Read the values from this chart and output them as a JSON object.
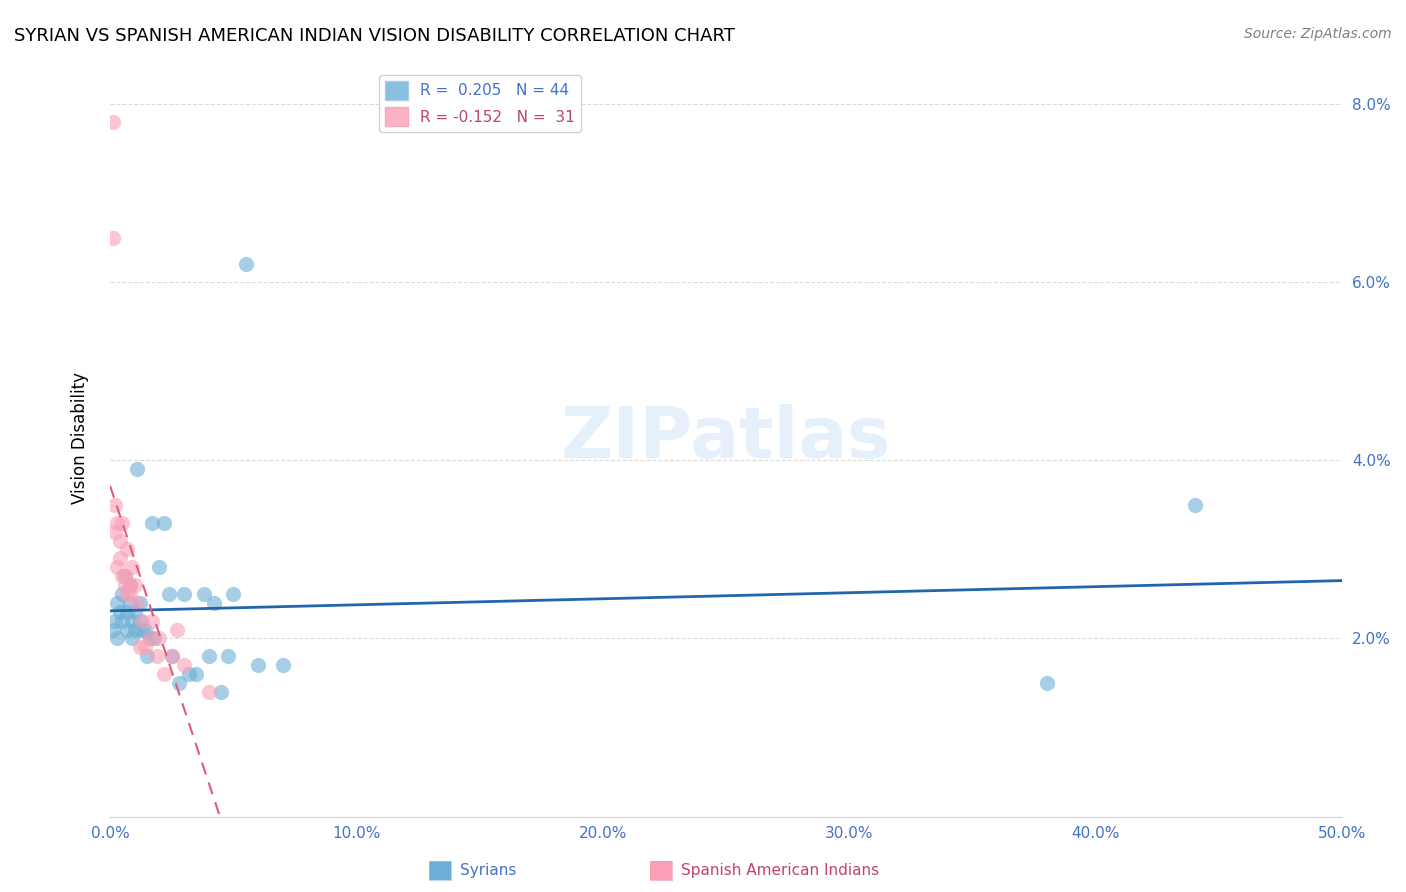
{
  "title": "SYRIAN VS SPANISH AMERICAN INDIAN VISION DISABILITY CORRELATION CHART",
  "source": "Source: ZipAtlas.com",
  "xlabel_syrians": "Syrians",
  "xlabel_spanish": "Spanish American Indians",
  "ylabel": "Vision Disability",
  "xlim": [
    0.0,
    0.5
  ],
  "ylim": [
    0.0,
    0.085
  ],
  "xticks": [
    0.0,
    0.1,
    0.2,
    0.3,
    0.4,
    0.5
  ],
  "xticklabels": [
    "0.0%",
    "10.0%",
    "20.0%",
    "30.0%",
    "40.0%",
    "50.0%"
  ],
  "yticks": [
    0.0,
    0.02,
    0.04,
    0.06,
    0.08
  ],
  "yticklabels": [
    "",
    "2.0%",
    "4.0%",
    "6.0%",
    "8.0%"
  ],
  "legend_r1": "R =  0.205",
  "legend_n1": "N = 44",
  "legend_r2": "R = -0.152",
  "legend_n2": "N =  31",
  "blue_color": "#6baed6",
  "pink_color": "#fa9fb5",
  "blue_line_color": "#2166ac",
  "pink_line_color": "#e05a7a",
  "legend_text_color": "#4472c4",
  "legend_text_color2": "#c0446a",
  "watermark": "ZIPatlas",
  "syrians_x": [
    0.001,
    0.002,
    0.003,
    0.003,
    0.004,
    0.005,
    0.005,
    0.006,
    0.007,
    0.007,
    0.008,
    0.008,
    0.009,
    0.009,
    0.01,
    0.01,
    0.011,
    0.012,
    0.012,
    0.013,
    0.014,
    0.015,
    0.016,
    0.017,
    0.018,
    0.02,
    0.022,
    0.024,
    0.025,
    0.028,
    0.03,
    0.032,
    0.035,
    0.038,
    0.04,
    0.042,
    0.045,
    0.048,
    0.05,
    0.055,
    0.06,
    0.07,
    0.38,
    0.44
  ],
  "syrians_y": [
    0.021,
    0.022,
    0.024,
    0.02,
    0.023,
    0.025,
    0.022,
    0.027,
    0.023,
    0.021,
    0.026,
    0.024,
    0.022,
    0.02,
    0.023,
    0.021,
    0.039,
    0.022,
    0.024,
    0.021,
    0.021,
    0.018,
    0.02,
    0.033,
    0.02,
    0.028,
    0.033,
    0.025,
    0.018,
    0.015,
    0.025,
    0.016,
    0.016,
    0.025,
    0.018,
    0.024,
    0.014,
    0.018,
    0.025,
    0.062,
    0.017,
    0.017,
    0.015,
    0.035
  ],
  "spanish_x": [
    0.001,
    0.002,
    0.002,
    0.003,
    0.003,
    0.004,
    0.004,
    0.005,
    0.005,
    0.006,
    0.006,
    0.007,
    0.007,
    0.008,
    0.008,
    0.009,
    0.01,
    0.011,
    0.012,
    0.013,
    0.014,
    0.016,
    0.017,
    0.019,
    0.02,
    0.022,
    0.025,
    0.027,
    0.03,
    0.04,
    0.001
  ],
  "spanish_y": [
    0.078,
    0.032,
    0.035,
    0.028,
    0.033,
    0.029,
    0.031,
    0.033,
    0.027,
    0.027,
    0.026,
    0.025,
    0.03,
    0.026,
    0.025,
    0.028,
    0.026,
    0.024,
    0.019,
    0.022,
    0.019,
    0.02,
    0.022,
    0.018,
    0.02,
    0.016,
    0.018,
    0.021,
    0.017,
    0.014,
    0.065
  ]
}
